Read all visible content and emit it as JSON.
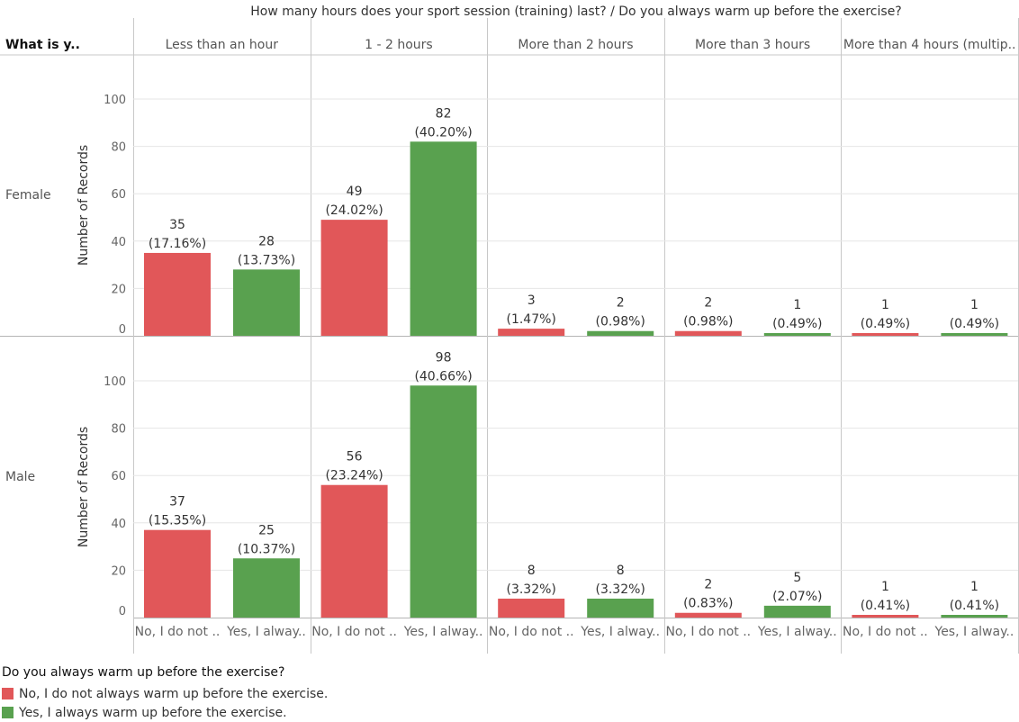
{
  "chart_data": {
    "type": "bar",
    "title": "How many hours does your sport session (training) last?  /  Do you always warm up before the exercise?",
    "row_header": "What is y..",
    "rows": [
      "Female",
      "Male"
    ],
    "columns": [
      "Less than an hour",
      "1 - 2 hours",
      "More than 2 hours",
      "More than 3 hours",
      "More than 4 hours (multip.."
    ],
    "bar_tick_labels": [
      "No, I do not ..",
      "Yes, I alway.."
    ],
    "ylabel": "Number of Records",
    "yticks": [
      "0",
      "20",
      "40",
      "60",
      "80",
      "100"
    ],
    "ylim": [
      0,
      110
    ],
    "legend_title": "Do you always warm up before the exercise?",
    "series": [
      {
        "name": "No, I do not always warm up before the exercise.",
        "color": "#E15759",
        "values": {
          "Female": [
            35,
            49,
            3,
            2,
            1
          ],
          "Male": [
            37,
            56,
            8,
            2,
            1
          ]
        },
        "pct": {
          "Female": [
            "(17.16%)",
            "(24.02%)",
            "(1.47%)",
            "(0.98%)",
            "(0.49%)"
          ],
          "Male": [
            "(15.35%)",
            "(23.24%)",
            "(3.32%)",
            "(0.83%)",
            "(0.41%)"
          ]
        }
      },
      {
        "name": "Yes, I always warm up before the exercise.",
        "color": "#59A14F",
        "values": {
          "Female": [
            28,
            82,
            2,
            1,
            1
          ],
          "Male": [
            25,
            98,
            8,
            5,
            1
          ]
        },
        "pct": {
          "Female": [
            "(13.73%)",
            "(40.20%)",
            "(0.98%)",
            "(0.49%)",
            "(0.49%)"
          ],
          "Male": [
            "(10.37%)",
            "(40.66%)",
            "(3.32%)",
            "(2.07%)",
            "(0.41%)"
          ]
        }
      }
    ]
  }
}
